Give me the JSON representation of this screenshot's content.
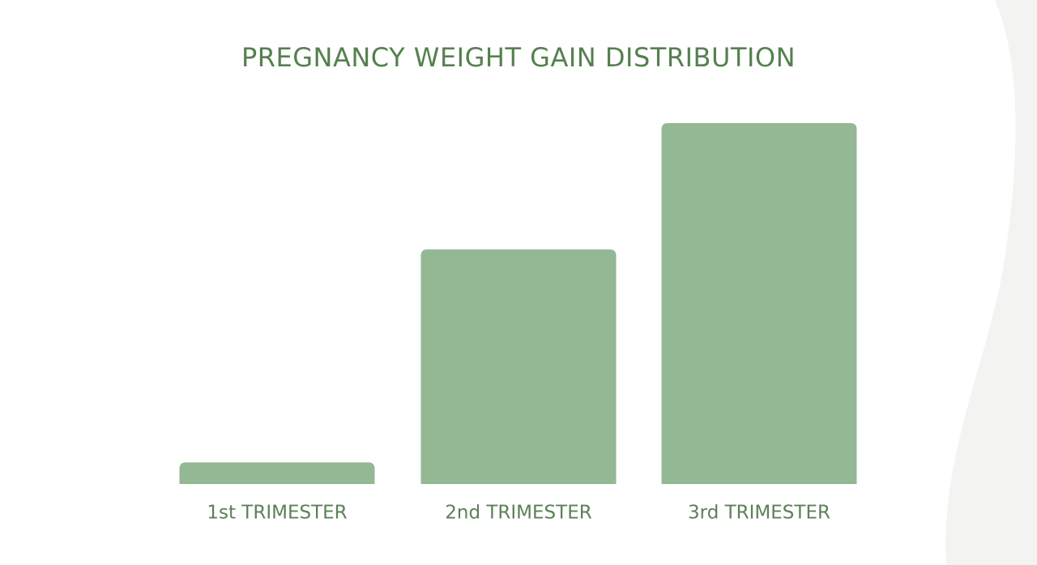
{
  "chart_data": {
    "type": "bar",
    "title": "PREGNANCY WEIGHT GAIN DISTRIBUTION",
    "categories": [
      "1st TRIMESTER",
      "2nd TRIMESTER",
      "3rd TRIMESTER"
    ],
    "values": [
      6,
      65,
      100
    ],
    "color": "#93b893"
  }
}
